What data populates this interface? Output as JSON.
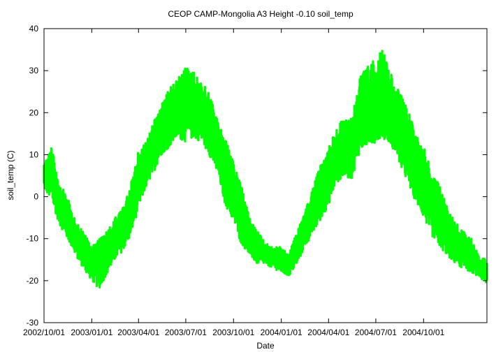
{
  "chart_data": {
    "type": "scatter",
    "title": "CEOP CAMP-Mongolia A3 Height -0.10 soil_temp",
    "xlabel": "Date",
    "ylabel": "soil_temp (C)",
    "ylim": [
      -30,
      40
    ],
    "yticks": [
      -30,
      -20,
      -10,
      0,
      10,
      20,
      30,
      40
    ],
    "xlim": [
      "2002-10-01",
      "2005-01-31"
    ],
    "xticks": [
      "2002/10/01",
      "2003/01/01",
      "2003/04/01",
      "2003/07/01",
      "2003/10/01",
      "2004/01/01",
      "2004/04/01",
      "2004/07/01",
      "2004/10/01"
    ],
    "xtick_labels": [
      "2002/10/01",
      "2003/01/01",
      "2003/04/01",
      "2003/07/01",
      "2003/10/01",
      "2004/01/01",
      "2004/04/01",
      "2004/07/01",
      "2004/10/01"
    ],
    "grid": false,
    "series": [
      {
        "color": "#00ff00",
        "envelope": {
          "dates": [
            "2002-10-01",
            "2002-10-15",
            "2002-11-01",
            "2002-11-15",
            "2002-12-01",
            "2002-12-15",
            "2003-01-01",
            "2003-01-15",
            "2003-02-01",
            "2003-02-15",
            "2003-03-01",
            "2003-03-15",
            "2003-04-01",
            "2003-04-15",
            "2003-05-01",
            "2003-05-15",
            "2003-06-01",
            "2003-06-15",
            "2003-07-01",
            "2003-07-15",
            "2003-08-01",
            "2003-08-15",
            "2003-09-01",
            "2003-09-15",
            "2003-10-01",
            "2003-10-15",
            "2003-11-01",
            "2003-11-15",
            "2003-12-01",
            "2003-12-15",
            "2004-01-01",
            "2004-01-15",
            "2004-02-01",
            "2004-02-15",
            "2004-03-01",
            "2004-03-15",
            "2004-04-01",
            "2004-04-15",
            "2004-05-01",
            "2004-05-15",
            "2004-06-01",
            "2004-06-15",
            "2004-07-01",
            "2004-07-15",
            "2004-08-01",
            "2004-08-15",
            "2004-09-01",
            "2004-09-15",
            "2004-10-01",
            "2004-10-15",
            "2004-11-01",
            "2004-11-15",
            "2004-12-01",
            "2004-12-15",
            "2005-01-01",
            "2005-01-15",
            "2005-01-31"
          ],
          "high": [
            8,
            12,
            3,
            0,
            -6,
            -8,
            -12,
            -10,
            -8,
            -5,
            -3,
            2,
            11,
            13,
            18,
            22,
            26,
            28,
            31,
            30,
            27,
            25,
            18,
            14,
            8,
            3,
            -5,
            -8,
            -11,
            -12,
            -12,
            -14,
            -8,
            -4,
            2,
            7,
            12,
            16,
            19,
            19,
            29,
            31,
            33,
            35,
            29,
            25,
            21,
            15,
            13,
            6,
            3,
            -2,
            -6,
            -8,
            -10,
            -14,
            -15
          ],
          "low": [
            2,
            -1,
            -7,
            -10,
            -14,
            -17,
            -20,
            -22,
            -18,
            -15,
            -13,
            -10,
            -3,
            2,
            6,
            10,
            12,
            14,
            13,
            14,
            13,
            10,
            5,
            -2,
            -6,
            -11,
            -14,
            -16,
            -16,
            -17,
            -18,
            -19,
            -16,
            -12,
            -9,
            -6,
            -2,
            3,
            5,
            4,
            11,
            12,
            13,
            14,
            12,
            8,
            3,
            -1,
            -5,
            -9,
            -12,
            -14,
            -16,
            -17,
            -18,
            -19,
            -21
          ]
        }
      }
    ]
  }
}
